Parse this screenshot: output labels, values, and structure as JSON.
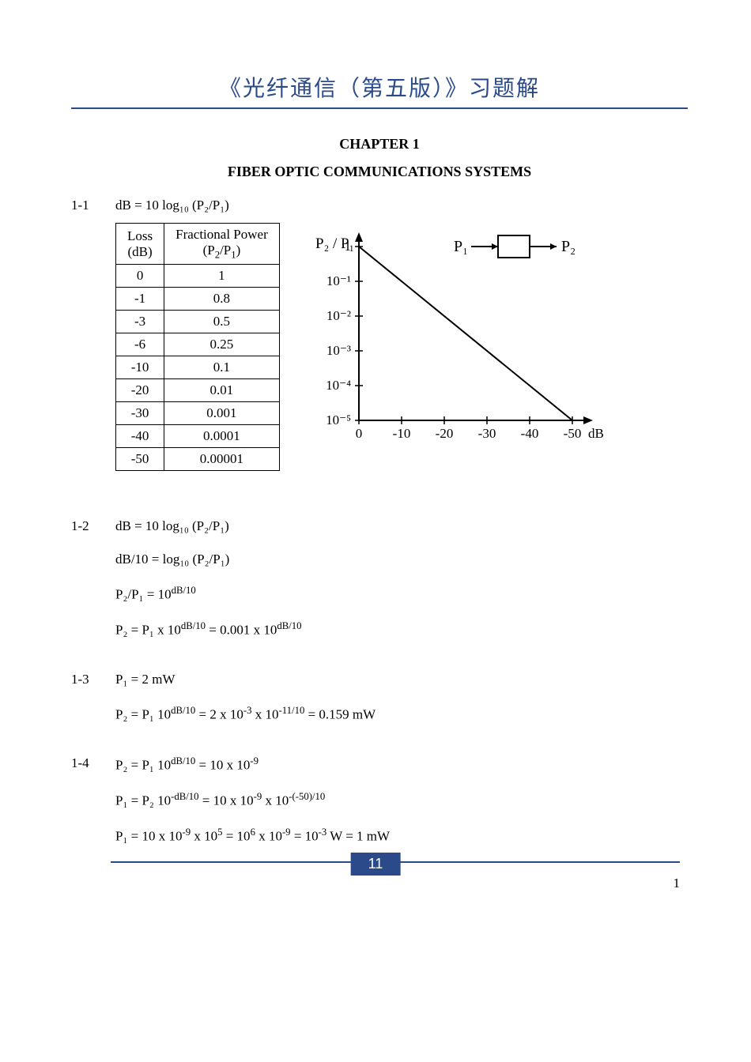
{
  "header": "《光纤通信（第五版）》习题解",
  "chapter": "CHAPTER 1",
  "subtitle": "FIBER OPTIC COMMUNICATIONS SYSTEMS",
  "problems": {
    "p1_1": {
      "num": "1-1",
      "eq": "dB = 10 log₁₀ (P₂/P₁)"
    },
    "p1_2": {
      "num": "1-2",
      "lines": [
        "dB = 10 log₁₀ (P₂/P₁)",
        "dB/10 = log₁₀ (P₂/P₁)",
        "P₂/P₁ = 10",
        "P₂ = P₁ x 10"
      ],
      "sup3": "dB/10",
      "line4_rhs": "= 0.001 x 10",
      "sup4": "dB/10"
    },
    "p1_3": {
      "num": "1-3",
      "l1": "P₁  = 2 mW",
      "l2_a": "P₂ = P₁ 10",
      "l2_sup1": "dB/10",
      "l2_b": "=  2 x 10",
      "l2_sup2": "-3",
      "l2_c": " x 10",
      "l2_sup3": "-11/10",
      "l2_d": " = 0.159 mW"
    },
    "p1_4": {
      "num": "1-4",
      "l1_a": "P₂ = P₁ 10",
      "l1_sup": "dB/10",
      "l1_b": " =  10 x 10",
      "l1_sup2": "-9",
      "l2_a": "P₁ = P₂ 10",
      "l2_sup1": "-dB/10",
      "l2_b": " =  10 x 10",
      "l2_sup2": "-9",
      "l2_c": "  x 10",
      "l2_sup3": "-(-50)/10",
      "l3_a": "P₁ = 10 x 10",
      "l3_s1": "-9",
      "l3_b": " x 10",
      "l3_s2": "5",
      "l3_c": " = 10",
      "l3_s3": "6",
      "l3_d": " x 10",
      "l3_s4": "-9",
      "l3_e": " = 10",
      "l3_s5": "-3",
      "l3_f": " W = 1 mW"
    }
  },
  "table": {
    "headers": [
      "Loss (dB)",
      "Fractional Power (P₂/P₁)"
    ],
    "rows": [
      [
        "0",
        "1"
      ],
      [
        "-1",
        "0.8"
      ],
      [
        "-3",
        "0.5"
      ],
      [
        "-6",
        "0.25"
      ],
      [
        "-10",
        "0.1"
      ],
      [
        "-20",
        "0.01"
      ],
      [
        "-30",
        "0.001"
      ],
      [
        "-40",
        "0.0001"
      ],
      [
        "-50",
        "0.00001"
      ]
    ]
  },
  "chart": {
    "type": "line",
    "y_label": "P₂ / P₁",
    "x_label": "dB",
    "y_ticks": [
      "1",
      "10⁻¹",
      "10⁻²",
      "10⁻³",
      "10⁻⁴",
      "10⁻⁵"
    ],
    "x_ticks": [
      "0",
      "-10",
      "-20",
      "-30",
      "-40",
      "-50"
    ],
    "block_left": "P₁",
    "block_right": "P₂",
    "line_color": "#000000",
    "axis_color": "#000000",
    "background": "#ffffff",
    "x_range": [
      0,
      -50
    ],
    "y_range_exp": [
      0,
      -5
    ],
    "line_points": [
      [
        0,
        0
      ],
      [
        -50,
        -5
      ]
    ],
    "font_size": 17
  },
  "footer": {
    "page_badge": "11",
    "corner": "1"
  }
}
